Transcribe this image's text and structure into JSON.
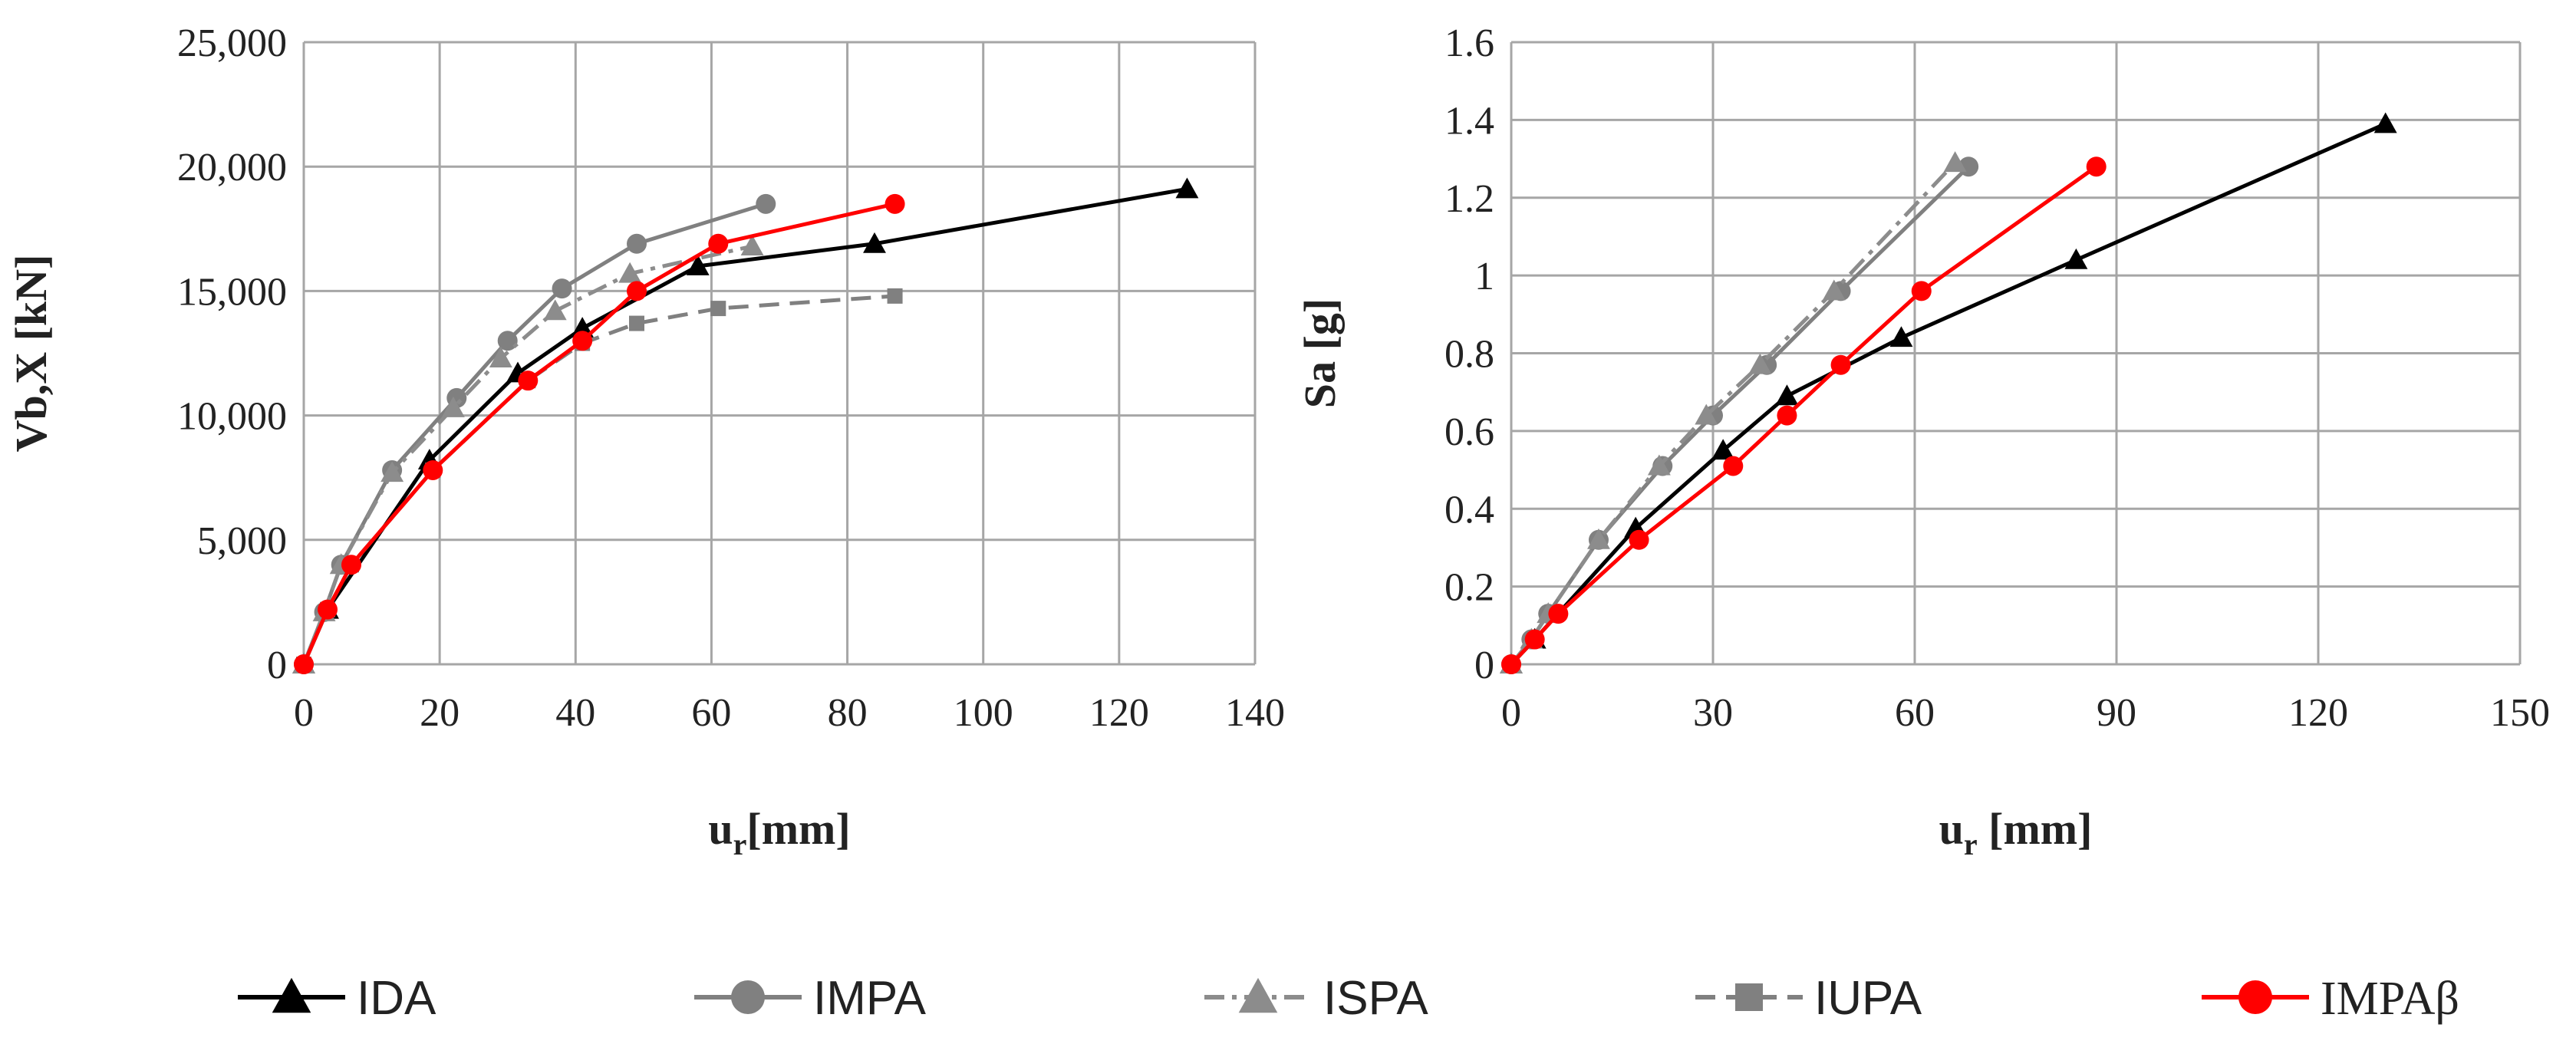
{
  "chart_data": [
    {
      "type": "line",
      "title": "",
      "xlabel_main": "u",
      "xlabel_sub": "r",
      "xlabel_rest": "[mm]",
      "ylabel": "Vb,X [kN]",
      "xlim": [
        0,
        140
      ],
      "ylim": [
        0,
        25000
      ],
      "xticks": [
        0,
        20,
        40,
        60,
        80,
        100,
        120,
        140
      ],
      "yticks": [
        0,
        5000,
        10000,
        15000,
        20000,
        25000
      ],
      "xtick_labels": [
        "0",
        "20",
        "40",
        "60",
        "80",
        "100",
        "120",
        "140"
      ],
      "ytick_labels": [
        "0",
        "5,000",
        "10,000",
        "15,000",
        "20,000",
        "25,000"
      ],
      "grid": true,
      "series": [
        {
          "name": "IDA",
          "color": "#000000",
          "dash": "solid",
          "marker": "triangle",
          "x": [
            0,
            3.5,
            18.5,
            31.5,
            41,
            58,
            84,
            130
          ],
          "y": [
            0,
            2200,
            8200,
            11700,
            13500,
            16000,
            16900,
            19100
          ]
        },
        {
          "name": "IMPA",
          "color": "#808080",
          "dash": "solid",
          "marker": "circle",
          "x": [
            0,
            3,
            5.5,
            13,
            22.5,
            30,
            38,
            49,
            68
          ],
          "y": [
            0,
            2100,
            4000,
            7800,
            10700,
            13000,
            15100,
            16900,
            18500
          ]
        },
        {
          "name": "ISPA",
          "color": "#8c8c8c",
          "dash": "dashdot",
          "marker": "triangle",
          "x": [
            0,
            3,
            5.5,
            13,
            22,
            29,
            37,
            48,
            66
          ],
          "y": [
            0,
            2100,
            4000,
            7700,
            10300,
            12300,
            14200,
            15700,
            16800
          ]
        },
        {
          "name": "IUPA",
          "color": "#808080",
          "dash": "dash",
          "marker": "square",
          "x": [
            0,
            3.5,
            7,
            19,
            33,
            41,
            49,
            61,
            87
          ],
          "y": [
            0,
            2200,
            4000,
            7800,
            11400,
            12900,
            13700,
            14300,
            14800
          ]
        },
        {
          "name": "IMPAβ",
          "color": "#ff0000",
          "dash": "solid",
          "marker": "circle",
          "x": [
            0,
            3.5,
            7,
            19,
            33,
            41,
            49,
            61,
            87
          ],
          "y": [
            0,
            2200,
            4000,
            7800,
            11400,
            13000,
            15000,
            16900,
            18500
          ]
        }
      ]
    },
    {
      "type": "line",
      "title": "",
      "xlabel_main": "u",
      "xlabel_sub": "r",
      "xlabel_rest": " [mm]",
      "ylabel": "Sa [g]",
      "xlim": [
        0,
        150
      ],
      "ylim": [
        0,
        1.6
      ],
      "xticks": [
        0,
        30,
        60,
        90,
        120,
        150
      ],
      "yticks": [
        0,
        0.2,
        0.4,
        0.6,
        0.8,
        1.0,
        1.2,
        1.4,
        1.6
      ],
      "xtick_labels": [
        "0",
        "30",
        "60",
        "90",
        "120",
        "150"
      ],
      "ytick_labels": [
        "0",
        "0.2",
        "0.4",
        "0.6",
        "0.8",
        "1",
        "1.2",
        "1.4",
        "1.6"
      ],
      "grid": true,
      "series": [
        {
          "name": "IDA",
          "color": "#000000",
          "dash": "solid",
          "marker": "triangle",
          "x": [
            0,
            3.5,
            18.5,
            31.5,
            41,
            58,
            84,
            130
          ],
          "y": [
            0,
            0.064,
            0.35,
            0.55,
            0.69,
            0.84,
            1.04,
            1.39
          ]
        },
        {
          "name": "IMPA",
          "color": "#808080",
          "dash": "solid",
          "marker": "circle",
          "x": [
            0,
            3,
            5.5,
            13,
            22.5,
            30,
            38,
            49,
            68
          ],
          "y": [
            0,
            0.064,
            0.13,
            0.32,
            0.51,
            0.64,
            0.77,
            0.96,
            1.28
          ]
        },
        {
          "name": "ISPA",
          "color": "#8c8c8c",
          "dash": "dashdot",
          "marker": "triangle",
          "x": [
            0,
            3,
            5.5,
            13,
            22,
            29,
            37,
            48,
            66
          ],
          "y": [
            0,
            0.064,
            0.13,
            0.32,
            0.51,
            0.64,
            0.77,
            0.96,
            1.29
          ]
        },
        {
          "name": "IMPAβ",
          "color": "#ff0000",
          "dash": "solid",
          "marker": "circle",
          "x": [
            0,
            3.5,
            7,
            19,
            33,
            41,
            49,
            61,
            87
          ],
          "y": [
            0,
            0.064,
            0.13,
            0.32,
            0.51,
            0.64,
            0.77,
            0.96,
            1.28
          ]
        }
      ]
    }
  ],
  "legend": [
    {
      "name": "IDA",
      "color": "#000000",
      "dash": "solid",
      "marker": "triangle",
      "font": "sans"
    },
    {
      "name": "IMPA",
      "color": "#808080",
      "dash": "solid",
      "marker": "circle",
      "font": "sans"
    },
    {
      "name": "ISPA",
      "color": "#8c8c8c",
      "dash": "dashdot",
      "marker": "triangle",
      "font": "sans"
    },
    {
      "name": "IUPA",
      "color": "#808080",
      "dash": "dash",
      "marker": "square",
      "font": "sans"
    },
    {
      "name": "IMPAβ",
      "color": "#ff0000",
      "dash": "solid",
      "marker": "circle",
      "font": "serif"
    }
  ]
}
